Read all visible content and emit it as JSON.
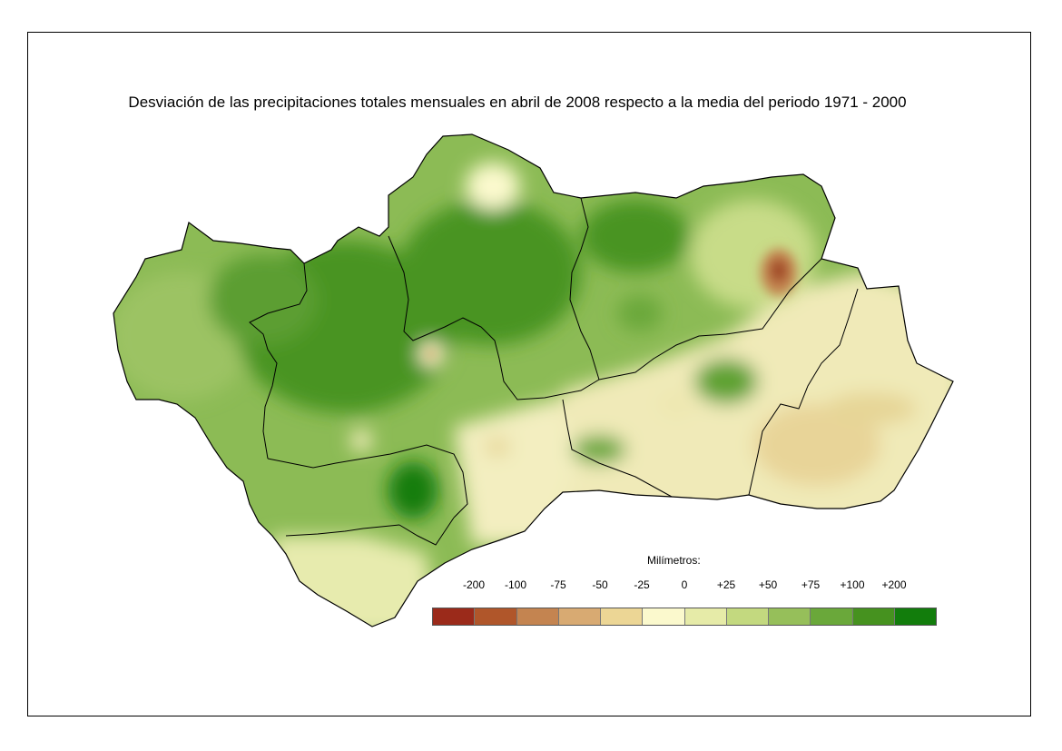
{
  "title": "Desviación de las precipitaciones totales mensuales en abril de 2008 respecto a la media del periodo 1971 - 2000",
  "legend": {
    "title": "Milímetros:",
    "labels": [
      "-200",
      "-100",
      "-75",
      "-50",
      "-25",
      "0",
      "+25",
      "+50",
      "+75",
      "+100",
      "+200"
    ],
    "colors": [
      "#9b2a1a",
      "#b0562a",
      "#c48450",
      "#d8aa72",
      "#ecd695",
      "#fbf9cd",
      "#e6eba8",
      "#c3d97f",
      "#96bf5a",
      "#6aa83a",
      "#46921f",
      "#127d0c"
    ]
  },
  "colors": {
    "region_base": "#7fb447",
    "wet_core": "#46921f",
    "very_wet": "#127d0c",
    "dry_east": "#f3e6ae"
  }
}
